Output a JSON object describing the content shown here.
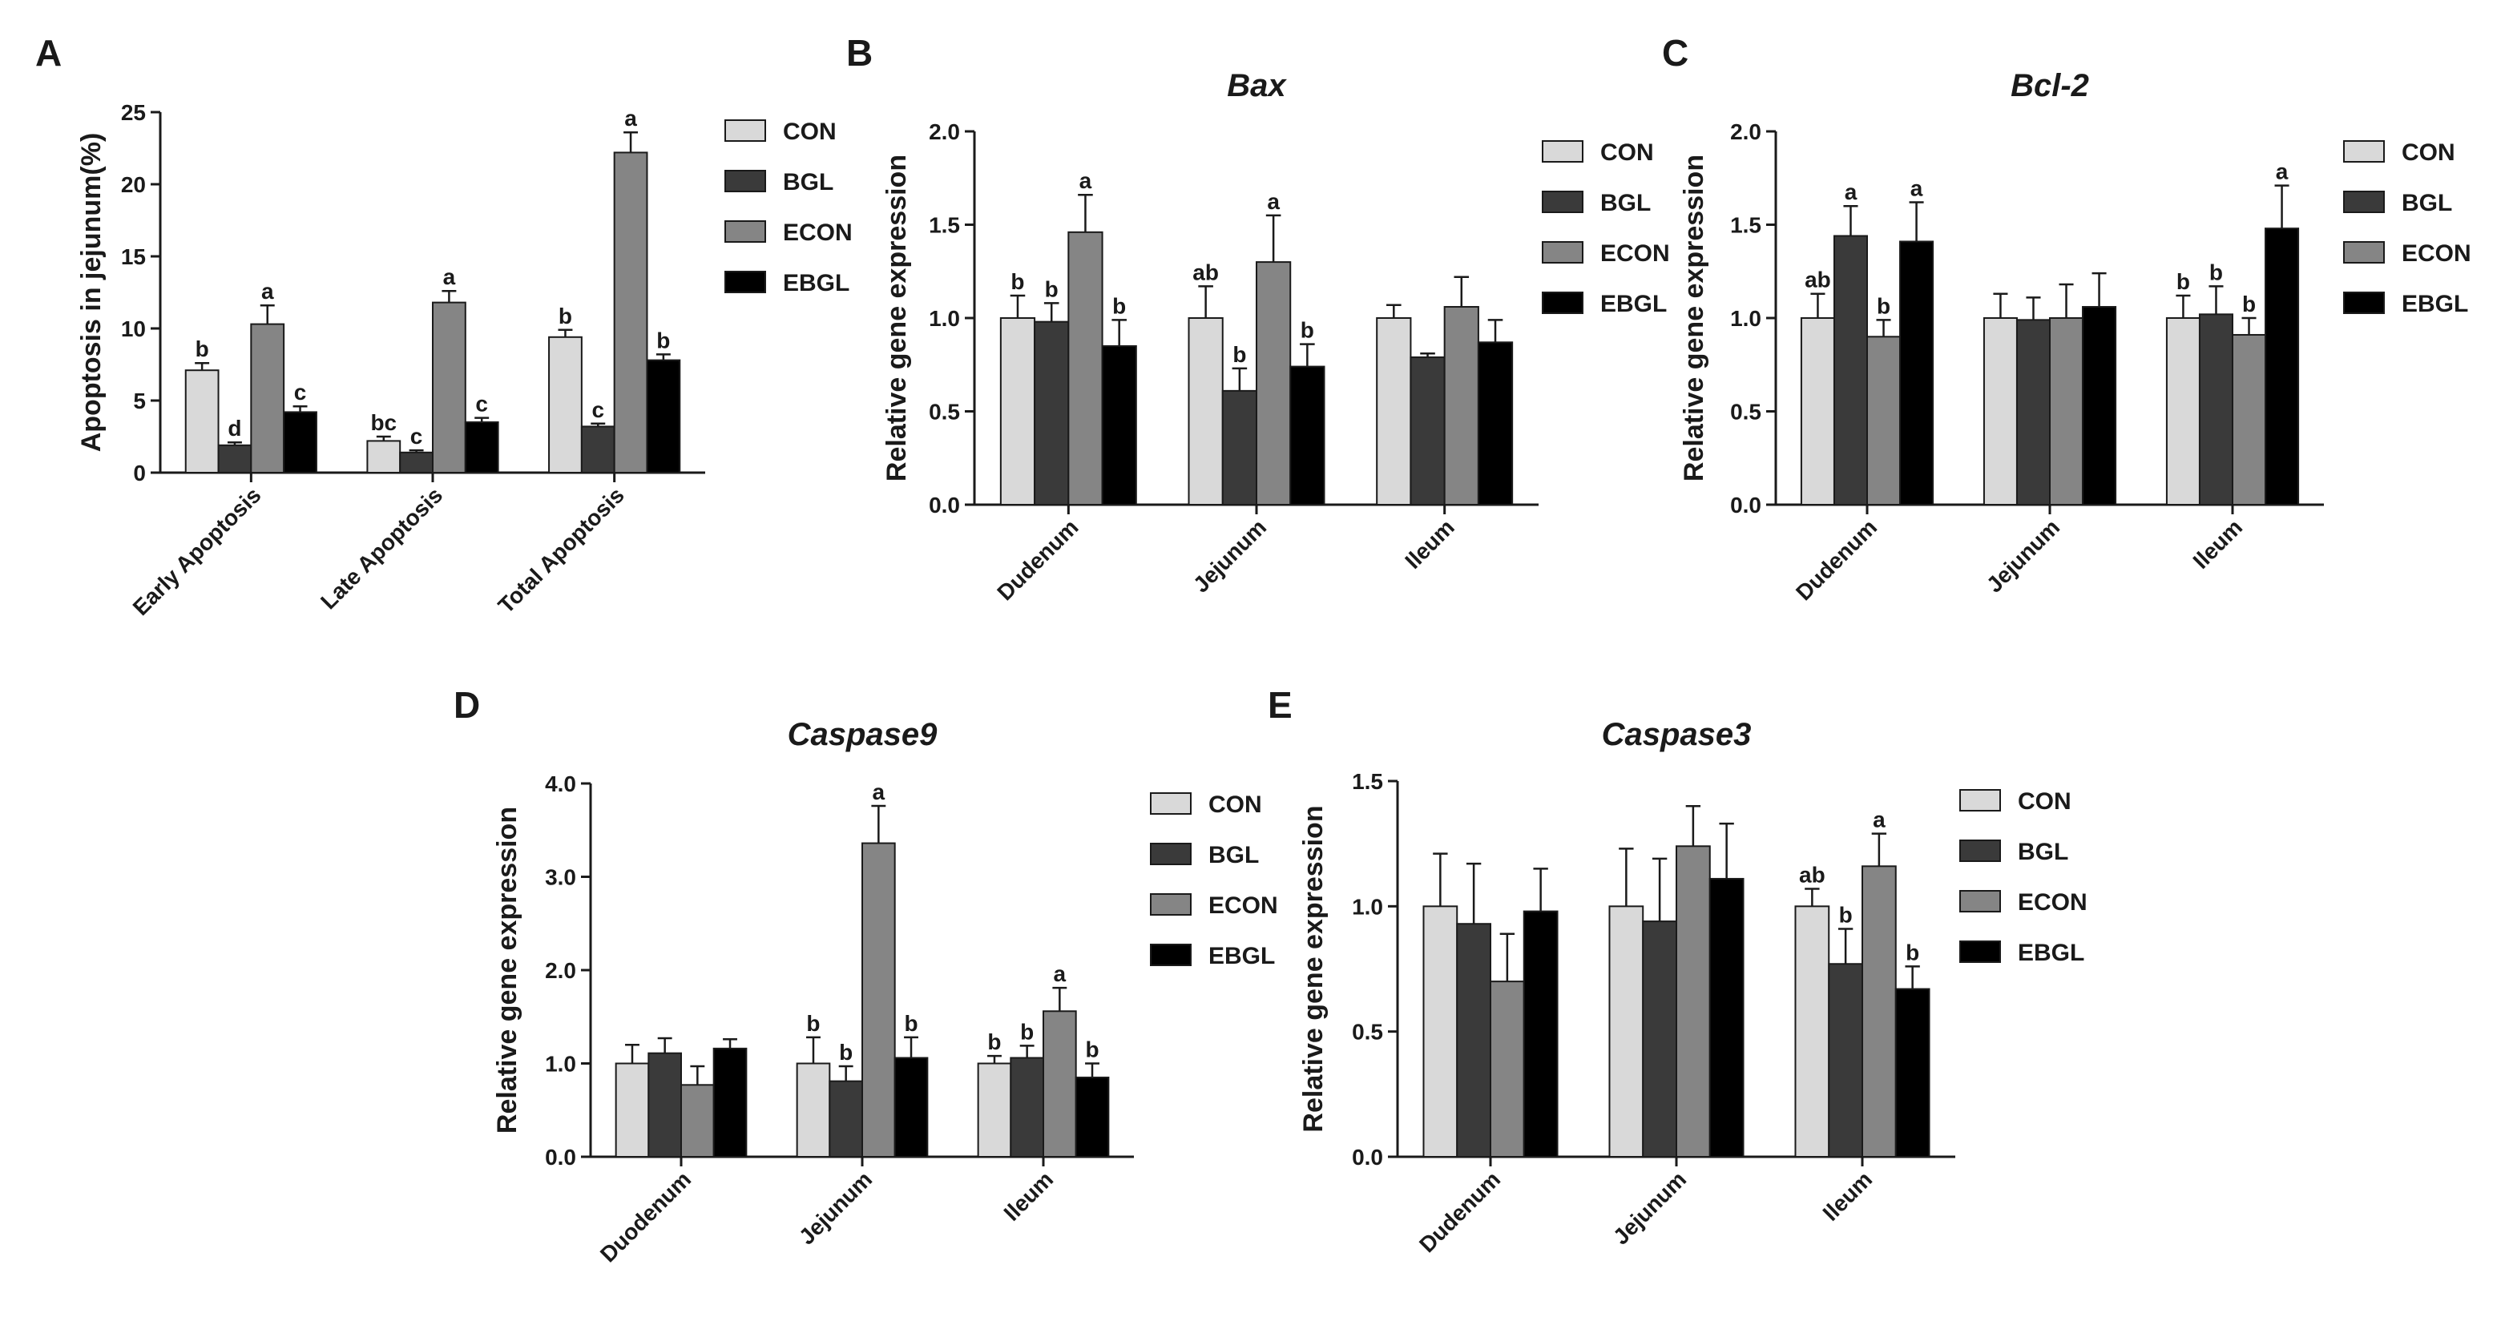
{
  "colors": {
    "CON": "#d9d9d9",
    "BGL": "#3a3a3a",
    "ECON": "#858585",
    "EBGL": "#000000",
    "axis": "#1a1a1a"
  },
  "chart_data": [
    {
      "panel": "A",
      "type": "bar",
      "title": "",
      "ylabel": "Apoptosis in jejunum(%)",
      "ylim": [
        0,
        25
      ],
      "yticks": [
        0,
        5,
        10,
        15,
        20,
        25
      ],
      "ytick_labels": [
        "0",
        "5",
        "10",
        "15",
        "20",
        "25"
      ],
      "categories": [
        "Early Apoptosis",
        "Late Apoptosis",
        "Total Apoptosis"
      ],
      "series": [
        {
          "name": "CON",
          "values": [
            7.1,
            2.2,
            9.4
          ],
          "errors": [
            0.5,
            0.3,
            0.5
          ],
          "sig": [
            "b",
            "bc",
            "b"
          ]
        },
        {
          "name": "BGL",
          "values": [
            1.9,
            1.4,
            3.2
          ],
          "errors": [
            0.2,
            0.15,
            0.2
          ],
          "sig": [
            "d",
            "c",
            "c"
          ]
        },
        {
          "name": "ECON",
          "values": [
            10.3,
            11.8,
            22.2
          ],
          "errors": [
            1.3,
            0.8,
            1.4
          ],
          "sig": [
            "a",
            "a",
            "a"
          ]
        },
        {
          "name": "EBGL",
          "values": [
            4.2,
            3.5,
            7.8
          ],
          "errors": [
            0.4,
            0.3,
            0.4
          ],
          "sig": [
            "c",
            "c",
            "b"
          ]
        }
      ],
      "legend": "right"
    },
    {
      "panel": "B",
      "type": "bar",
      "title": "Bax",
      "ylabel": "Relative gene expression",
      "ylim": [
        0,
        2.0
      ],
      "yticks": [
        0,
        0.5,
        1.0,
        1.5,
        2.0
      ],
      "ytick_labels": [
        "0.0",
        "0.5",
        "1.0",
        "1.5",
        "2.0"
      ],
      "categories": [
        "Dudenum",
        "Jejunum",
        "Ileum"
      ],
      "series": [
        {
          "name": "CON",
          "values": [
            1.0,
            1.0,
            1.0
          ],
          "errors": [
            0.12,
            0.17,
            0.07
          ],
          "sig": [
            "b",
            "ab",
            ""
          ]
        },
        {
          "name": "BGL",
          "values": [
            0.98,
            0.61,
            0.79
          ],
          "errors": [
            0.1,
            0.12,
            0.02
          ],
          "sig": [
            "b",
            "b",
            ""
          ]
        },
        {
          "name": "ECON",
          "values": [
            1.46,
            1.3,
            1.06
          ],
          "errors": [
            0.2,
            0.25,
            0.16
          ],
          "sig": [
            "a",
            "a",
            ""
          ]
        },
        {
          "name": "EBGL",
          "values": [
            0.85,
            0.74,
            0.87
          ],
          "errors": [
            0.14,
            0.12,
            0.12
          ],
          "sig": [
            "b",
            "b",
            ""
          ]
        }
      ],
      "legend": "right"
    },
    {
      "panel": "C",
      "type": "bar",
      "title": "Bcl-2",
      "ylabel": "Relative gene expression",
      "ylim": [
        0,
        2.0
      ],
      "yticks": [
        0,
        0.5,
        1.0,
        1.5,
        2.0
      ],
      "ytick_labels": [
        "0.0",
        "0.5",
        "1.0",
        "1.5",
        "2.0"
      ],
      "categories": [
        "Dudenum",
        "Jejunum",
        "Ileum"
      ],
      "series": [
        {
          "name": "CON",
          "values": [
            1.0,
            1.0,
            1.0
          ],
          "errors": [
            0.13,
            0.13,
            0.12
          ],
          "sig": [
            "ab",
            "",
            "b"
          ]
        },
        {
          "name": "BGL",
          "values": [
            1.44,
            0.99,
            1.02
          ],
          "errors": [
            0.16,
            0.12,
            0.15
          ],
          "sig": [
            "a",
            "",
            "b"
          ]
        },
        {
          "name": "ECON",
          "values": [
            0.9,
            1.0,
            0.91
          ],
          "errors": [
            0.09,
            0.18,
            0.09
          ],
          "sig": [
            "b",
            "",
            "b"
          ]
        },
        {
          "name": "EBGL",
          "values": [
            1.41,
            1.06,
            1.48
          ],
          "errors": [
            0.21,
            0.18,
            0.23
          ],
          "sig": [
            "a",
            "",
            "a"
          ]
        }
      ],
      "legend": "right"
    },
    {
      "panel": "D",
      "type": "bar",
      "title": "Caspase9",
      "ylabel": "Relative gene expression",
      "ylim": [
        0,
        4.0
      ],
      "yticks": [
        0,
        1.0,
        2.0,
        3.0,
        4.0
      ],
      "ytick_labels": [
        "0.0",
        "1.0",
        "2.0",
        "3.0",
        "4.0"
      ],
      "categories": [
        "Duodenum",
        "Jejunum",
        "Ileum"
      ],
      "series": [
        {
          "name": "CON",
          "values": [
            1.0,
            1.0,
            1.0
          ],
          "errors": [
            0.2,
            0.28,
            0.08
          ],
          "sig": [
            "",
            "b",
            "b"
          ]
        },
        {
          "name": "BGL",
          "values": [
            1.11,
            0.81,
            1.06
          ],
          "errors": [
            0.16,
            0.16,
            0.13
          ],
          "sig": [
            "",
            "b",
            "b"
          ]
        },
        {
          "name": "ECON",
          "values": [
            0.77,
            3.36,
            1.56
          ],
          "errors": [
            0.2,
            0.4,
            0.25
          ],
          "sig": [
            "",
            "a",
            "a"
          ]
        },
        {
          "name": "EBGL",
          "values": [
            1.16,
            1.06,
            0.85
          ],
          "errors": [
            0.1,
            0.22,
            0.15
          ],
          "sig": [
            "",
            "b",
            "b"
          ]
        }
      ],
      "legend": "right"
    },
    {
      "panel": "E",
      "type": "bar",
      "title": "Caspase3",
      "ylabel": "Relative gene expression",
      "ylim": [
        0,
        1.5
      ],
      "yticks": [
        0,
        0.5,
        1.0,
        1.5
      ],
      "ytick_labels": [
        "0.0",
        "0.5",
        "1.0",
        "1.5"
      ],
      "categories": [
        "Dudenum",
        "Jejunum",
        "Ileum"
      ],
      "series": [
        {
          "name": "CON",
          "values": [
            1.0,
            1.0,
            1.0
          ],
          "errors": [
            0.21,
            0.23,
            0.07
          ],
          "sig": [
            "",
            "",
            "ab"
          ]
        },
        {
          "name": "BGL",
          "values": [
            0.93,
            0.94,
            0.77
          ],
          "errors": [
            0.24,
            0.25,
            0.14
          ],
          "sig": [
            "",
            "",
            "b"
          ]
        },
        {
          "name": "ECON",
          "values": [
            0.7,
            1.24,
            1.16
          ],
          "errors": [
            0.19,
            0.16,
            0.13
          ],
          "sig": [
            "",
            "",
            "a"
          ]
        },
        {
          "name": "EBGL",
          "values": [
            0.98,
            1.11,
            0.67
          ],
          "errors": [
            0.17,
            0.22,
            0.09
          ],
          "sig": [
            "",
            "",
            "b"
          ]
        }
      ],
      "legend": "right"
    }
  ]
}
